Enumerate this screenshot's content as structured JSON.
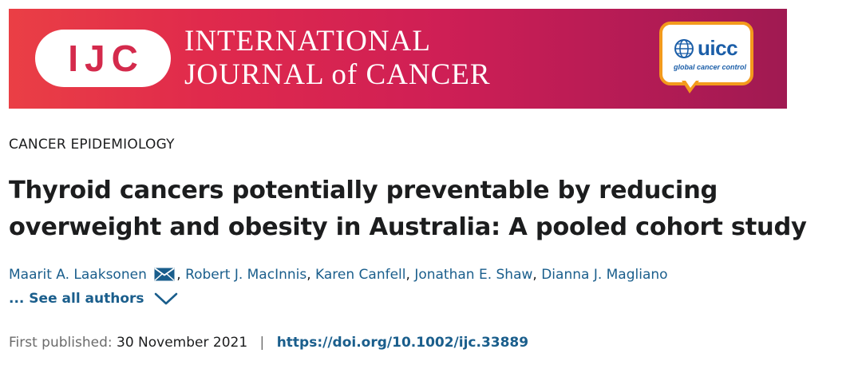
{
  "banner": {
    "logo_letters": "IJC",
    "journal_line1": "INTERNATIONAL",
    "journal_line2": "JOURNAL of CANCER",
    "partner_logo": "uicc",
    "partner_tagline": "global cancer control",
    "colors": {
      "banner_start": "#ea3f45",
      "banner_end": "#a01a52",
      "partner_border": "#f39a1c",
      "partner_text": "#1b5ea8"
    }
  },
  "article": {
    "section": "CANCER EPIDEMIOLOGY",
    "title": "Thyroid cancers potentially preventable by reducing overweight and obesity in Australia: A pooled cohort study",
    "authors": [
      "Maarit A. Laaksonen",
      "Robert J. MacInnis",
      "Karen Canfell",
      "Jonathan E. Shaw",
      "Dianna J. Magliano"
    ],
    "author_separator": ",",
    "see_all_label": "... See all authors",
    "published_label": "First published:",
    "published_date": "30 November 2021",
    "divider": "|",
    "doi": "https://doi.org/10.1002/ijc.33889",
    "link_color": "#1a5e8c"
  }
}
